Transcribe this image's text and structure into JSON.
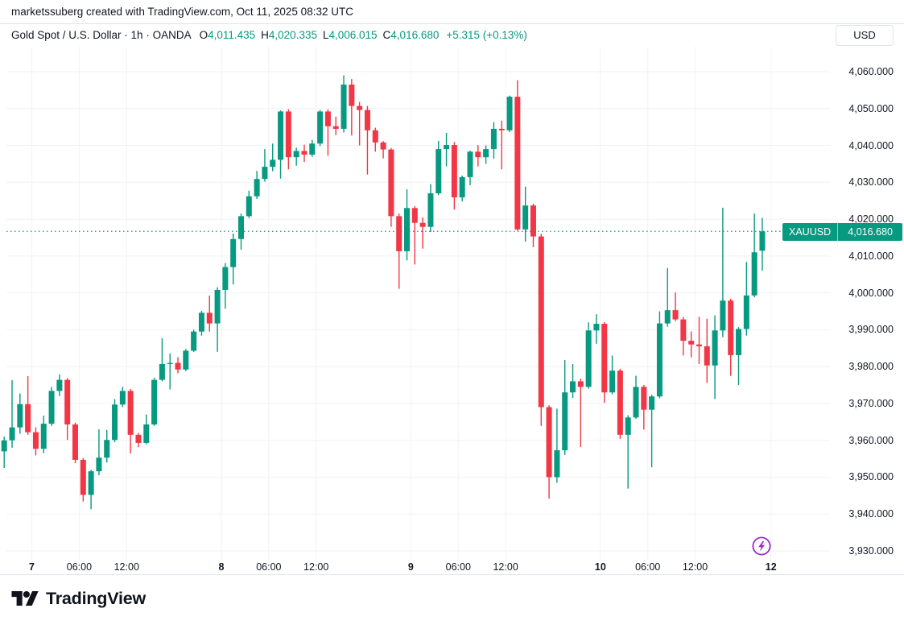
{
  "attribution": {
    "text": "marketssuberg created with TradingView.com, Oct 11, 2025 08:32 UTC"
  },
  "header": {
    "title": "Gold Spot / U.S. Dollar · 1h · OANDA",
    "symbol": "Gold Spot / U.S. Dollar",
    "interval": "1h",
    "exchange": "OANDA",
    "ohlc": {
      "o_label": "O",
      "o": "4,011.435",
      "h_label": "H",
      "h": "4,020.335",
      "l_label": "L",
      "l": "4,006.015",
      "c_label": "C",
      "c": "4,016.680"
    },
    "change": "+5.315 (+0.13%)",
    "currency_button": "USD"
  },
  "price_label": {
    "symbol": "XAUUSD",
    "price": "4,016.680"
  },
  "footer": {
    "logo_text": "TradingView"
  },
  "colors": {
    "up": "#089981",
    "down": "#f23645",
    "text": "#131722",
    "grid": "#f0f2f5",
    "border": "#e0e3eb",
    "flash_purple": "#a028c8",
    "background": "#ffffff"
  },
  "chart_data": {
    "type": "candlestick",
    "title": "Gold Spot / U.S. Dollar",
    "symbol": "XAUUSD",
    "exchange": "OANDA",
    "interval": "1h",
    "timezone": "UTC",
    "start_time": "2025-10-06 20:00",
    "end_time": "2025-10-10 20:00",
    "last_close": 4016.68,
    "ylim": [
      3925,
      4066
    ],
    "grid": true,
    "y_axis": {
      "ticks": [
        4060,
        4050,
        4040,
        4030,
        4020,
        4010,
        4000,
        3990,
        3980,
        3970,
        3960,
        3950,
        3940,
        3930
      ]
    },
    "x_axis": {
      "ticks": [
        {
          "label": "7",
          "pos": 3.5,
          "bold": true
        },
        {
          "label": "06:00",
          "pos": 9.5,
          "bold": false
        },
        {
          "label": "12:00",
          "pos": 15.5,
          "bold": false
        },
        {
          "label": "8",
          "pos": 27.5,
          "bold": true
        },
        {
          "label": "06:00",
          "pos": 33.5,
          "bold": false
        },
        {
          "label": "12:00",
          "pos": 39.5,
          "bold": false
        },
        {
          "label": "9",
          "pos": 51.5,
          "bold": true
        },
        {
          "label": "06:00",
          "pos": 57.5,
          "bold": false
        },
        {
          "label": "12:00",
          "pos": 63.5,
          "bold": false
        },
        {
          "label": "10",
          "pos": 75.5,
          "bold": true
        },
        {
          "label": "06:00",
          "pos": 81.5,
          "bold": false
        },
        {
          "label": "12:00",
          "pos": 87.5,
          "bold": false
        },
        {
          "label": "12",
          "pos": 97.1,
          "bold": true
        }
      ]
    },
    "candles_format": [
      "open",
      "high",
      "low",
      "close"
    ],
    "candles": [
      [
        3957.0,
        3961.0,
        3952.5,
        3960.0
      ],
      [
        3960.0,
        3976.3,
        3958.0,
        3963.5
      ],
      [
        3963.5,
        3972.7,
        3961.8,
        3969.8
      ],
      [
        3969.8,
        3977.4,
        3961.5,
        3962.2
      ],
      [
        3962.2,
        3963.5,
        3955.9,
        3957.7
      ],
      [
        3957.7,
        3966.7,
        3956.5,
        3964.5
      ],
      [
        3964.5,
        3974.5,
        3963.9,
        3973.4
      ],
      [
        3973.4,
        3977.9,
        3972.0,
        3976.4
      ],
      [
        3976.4,
        3976.9,
        3960.1,
        3964.3
      ],
      [
        3964.3,
        3964.8,
        3953.8,
        3954.7
      ],
      [
        3954.7,
        3955.2,
        3943.4,
        3945.2
      ],
      [
        3945.2,
        3952.0,
        3941.3,
        3951.6
      ],
      [
        3951.6,
        3963.0,
        3950.5,
        3955.3
      ],
      [
        3955.3,
        3962.8,
        3954.0,
        3960.1
      ],
      [
        3960.1,
        3971.2,
        3959.5,
        3969.7
      ],
      [
        3969.7,
        3974.5,
        3969.0,
        3973.4
      ],
      [
        3973.4,
        3973.9,
        3956.4,
        3961.5
      ],
      [
        3961.5,
        3962.0,
        3958.1,
        3959.3
      ],
      [
        3959.3,
        3967.0,
        3958.9,
        3964.3
      ],
      [
        3964.3,
        3977.0,
        3963.9,
        3976.4
      ],
      [
        3976.4,
        3987.7,
        3976.0,
        3980.7
      ],
      [
        3980.7,
        3983.6,
        3973.8,
        3981.0
      ],
      [
        3981.0,
        3982.5,
        3978.2,
        3979.2
      ],
      [
        3979.2,
        3984.8,
        3978.8,
        3984.3
      ],
      [
        3984.3,
        3990.0,
        3984.0,
        3989.5
      ],
      [
        3989.5,
        3995.1,
        3988.4,
        3994.6
      ],
      [
        3994.6,
        3999.3,
        3989.5,
        3991.7
      ],
      [
        3991.7,
        4001.5,
        3984.0,
        4000.8
      ],
      [
        4000.8,
        4008.1,
        3995.7,
        4007.0
      ],
      [
        4007.0,
        4016.1,
        4002.3,
        4014.6
      ],
      [
        4014.6,
        4021.5,
        4011.7,
        4020.8
      ],
      [
        4020.8,
        4027.7,
        4020.3,
        4026.2
      ],
      [
        4026.2,
        4033.1,
        4025.5,
        4030.9
      ],
      [
        4030.9,
        4039.0,
        4030.2,
        4034.2
      ],
      [
        4034.2,
        4040.5,
        4033.0,
        4036.1
      ],
      [
        4036.1,
        4049.5,
        4031.0,
        4049.2
      ],
      [
        4049.2,
        4049.8,
        4033.5,
        4036.8
      ],
      [
        4036.8,
        4039.4,
        4034.5,
        4038.5
      ],
      [
        4038.5,
        4040.2,
        4035.5,
        4037.5
      ],
      [
        4037.5,
        4041.5,
        4036.9,
        4040.5
      ],
      [
        4040.5,
        4049.6,
        4039.8,
        4049.2
      ],
      [
        4049.2,
        4049.8,
        4037.2,
        4045.2
      ],
      [
        4045.2,
        4047.8,
        4042.8,
        4044.5
      ],
      [
        4044.5,
        4059.0,
        4043.5,
        4056.5
      ],
      [
        4056.5,
        4058.0,
        4042.7,
        4050.7
      ],
      [
        4050.7,
        4051.8,
        4040.0,
        4049.6
      ],
      [
        4049.6,
        4050.7,
        4032.1,
        4044.1
      ],
      [
        4044.1,
        4044.8,
        4038.3,
        4040.8
      ],
      [
        4040.8,
        4041.2,
        4036.5,
        4038.9
      ],
      [
        4038.9,
        4039.3,
        4017.9,
        4020.8
      ],
      [
        4020.8,
        4021.5,
        4001.1,
        4011.3
      ],
      [
        4011.3,
        4028.1,
        4008.8,
        4023.0
      ],
      [
        4023.0,
        4023.5,
        4007.7,
        4019.0
      ],
      [
        4019.0,
        4020.5,
        4012.0,
        4017.9
      ],
      [
        4017.9,
        4029.5,
        4016.5,
        4027.0
      ],
      [
        4027.0,
        4041.2,
        4026.5,
        4039.0
      ],
      [
        4039.0,
        4043.4,
        4034.3,
        4040.1
      ],
      [
        4040.1,
        4040.9,
        4022.6,
        4025.9
      ],
      [
        4025.9,
        4031.8,
        4024.8,
        4031.4
      ],
      [
        4031.4,
        4038.6,
        4029.2,
        4038.3
      ],
      [
        4038.3,
        4040.1,
        4034.3,
        4036.8
      ],
      [
        4036.8,
        4040.0,
        4035.0,
        4039.0
      ],
      [
        4039.0,
        4046.3,
        4036.4,
        4044.5
      ],
      [
        4044.5,
        4046.7,
        4033.5,
        4044.1
      ],
      [
        4044.1,
        4053.5,
        4043.6,
        4053.2
      ],
      [
        4053.2,
        4057.7,
        4016.8,
        4017.2
      ],
      [
        4017.2,
        4028.8,
        4013.9,
        4023.7
      ],
      [
        4023.7,
        4024.2,
        4012.4,
        4015.3
      ],
      [
        4015.3,
        4016.0,
        3963.9,
        3969.0
      ],
      [
        3969.0,
        3969.5,
        3944.2,
        3950.0
      ],
      [
        3950.0,
        3968.6,
        3948.5,
        3957.3
      ],
      [
        3957.3,
        3981.8,
        3956.0,
        3973.0
      ],
      [
        3973.0,
        3980.7,
        3971.5,
        3976.0
      ],
      [
        3976.0,
        3976.7,
        3958.2,
        3974.5
      ],
      [
        3974.5,
        3992.0,
        3974.0,
        3989.8
      ],
      [
        3989.8,
        3994.2,
        3986.2,
        3991.6
      ],
      [
        3991.6,
        3992.1,
        3970.2,
        3973.0
      ],
      [
        3973.0,
        3983.0,
        3972.5,
        3978.9
      ],
      [
        3978.9,
        3979.4,
        3960.4,
        3961.5
      ],
      [
        3961.5,
        3966.8,
        3946.9,
        3966.2
      ],
      [
        3966.2,
        3977.5,
        3965.8,
        3974.5
      ],
      [
        3974.5,
        3975.0,
        3962.9,
        3968.3
      ],
      [
        3968.3,
        3972.4,
        3952.7,
        3971.9
      ],
      [
        3971.9,
        3995.0,
        3971.4,
        3991.7
      ],
      [
        3991.7,
        4006.7,
        3990.8,
        3995.3
      ],
      [
        3995.3,
        4000.1,
        3992.3,
        3992.8
      ],
      [
        3992.8,
        3993.5,
        3983.0,
        3987.0
      ],
      [
        3987.0,
        3989.5,
        3982.5,
        3986.0
      ],
      [
        3986.0,
        3993.5,
        3980.7,
        3985.5
      ],
      [
        3985.5,
        3993.0,
        3975.6,
        3980.3
      ],
      [
        3980.3,
        3993.9,
        3971.2,
        3989.8
      ],
      [
        3989.8,
        4023.1,
        3988.0,
        3997.9
      ],
      [
        3997.9,
        3998.4,
        3977.5,
        3983.1
      ],
      [
        3983.1,
        3990.7,
        3975.0,
        3990.2
      ],
      [
        3990.2,
        4008.4,
        3988.4,
        3999.3
      ],
      [
        3999.3,
        4021.5,
        3998.8,
        4011.0
      ],
      [
        4011.435,
        4020.335,
        4006.015,
        4016.68
      ]
    ]
  }
}
